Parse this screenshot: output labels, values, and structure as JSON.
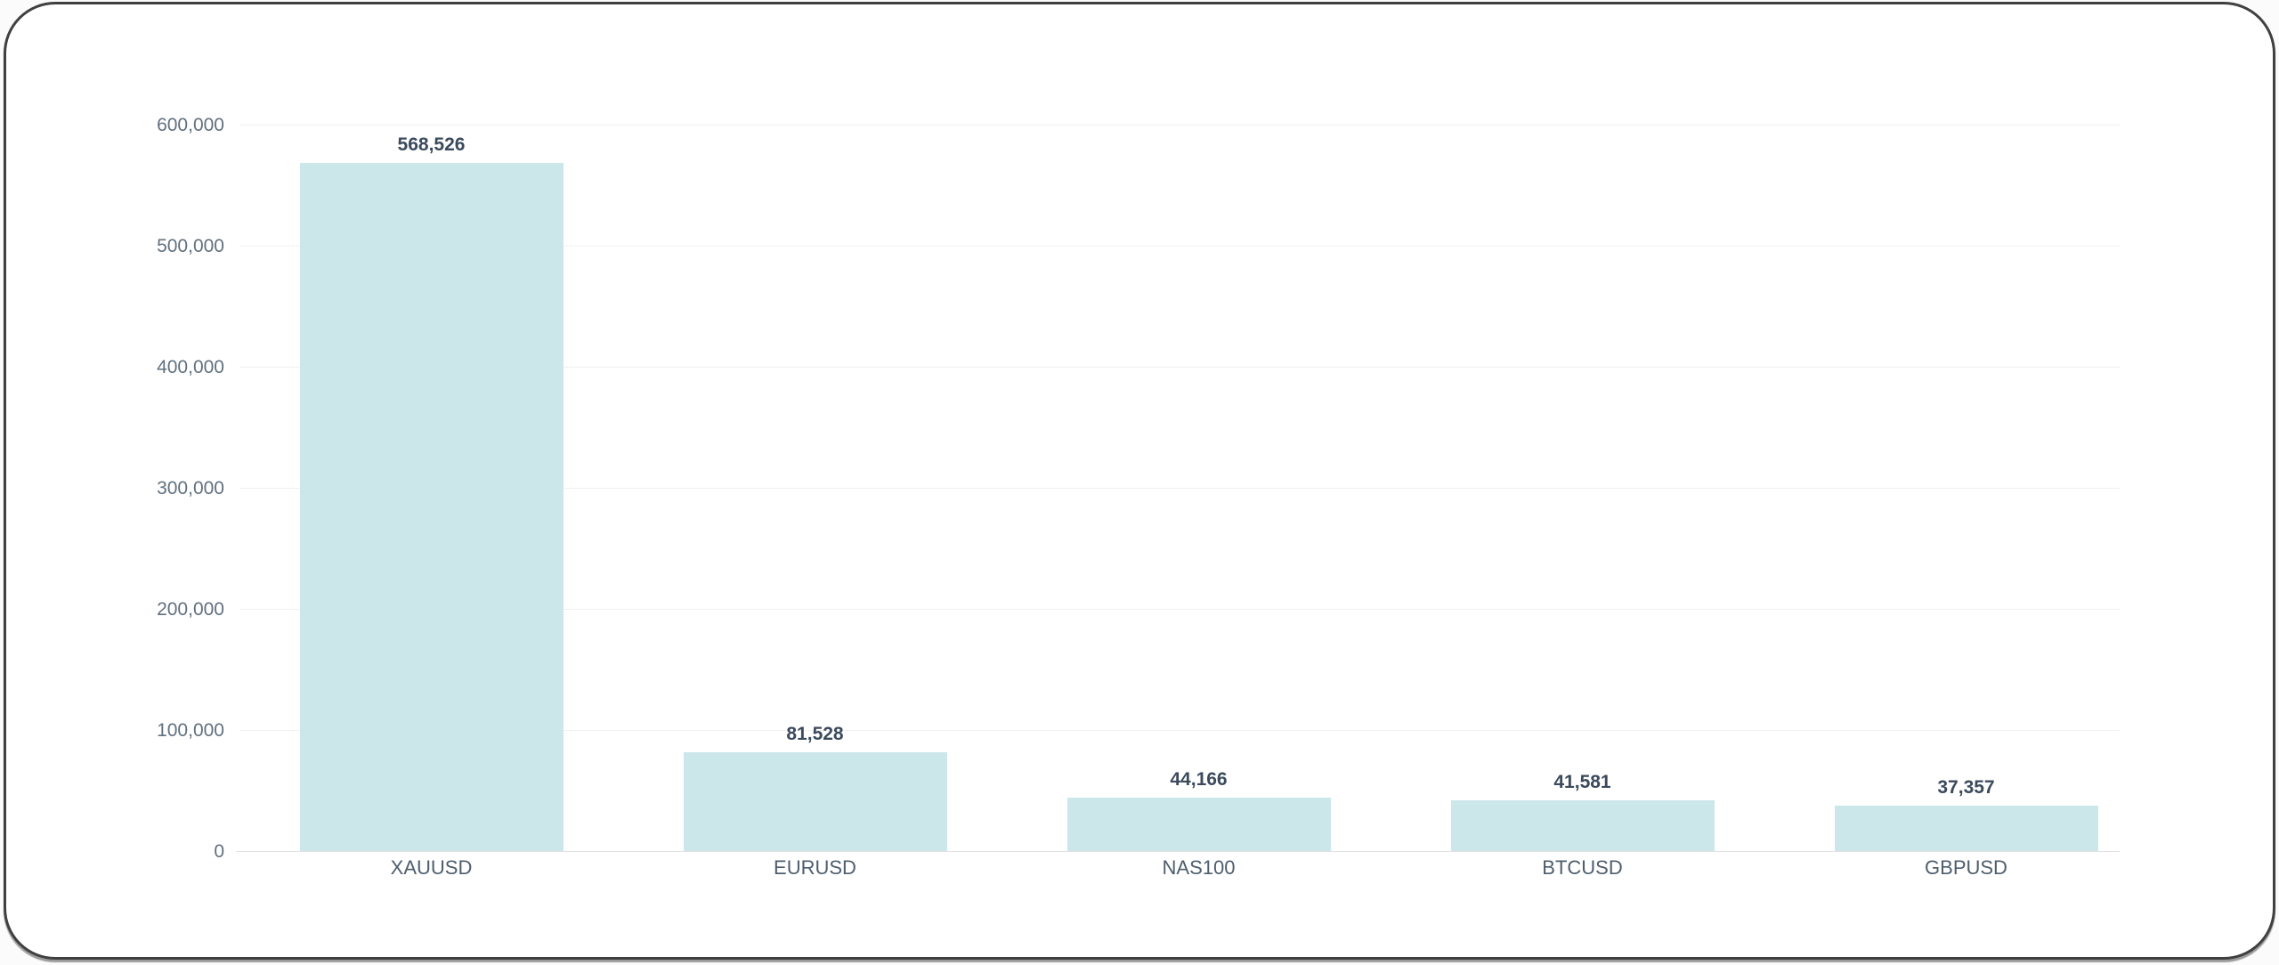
{
  "chart_data": {
    "type": "bar",
    "categories": [
      "XAUUSD",
      "EURUSD",
      "NAS100",
      "BTCUSD",
      "GBPUSD"
    ],
    "values": [
      568526,
      81528,
      44166,
      41581,
      37357
    ],
    "value_labels": [
      "568,526",
      "81,528",
      "44,166",
      "41,581",
      "37,357"
    ],
    "title": "",
    "xlabel": "",
    "ylabel": "",
    "ylim": [
      0,
      600000
    ],
    "y_ticks": [
      0,
      100000,
      200000,
      300000,
      400000,
      500000,
      600000
    ],
    "y_tick_labels": [
      "0",
      "100,000",
      "200,000",
      "300,000",
      "400,000",
      "500,000",
      "600,000"
    ],
    "grid": true,
    "legend": false,
    "bar_color": "#cbe7ea",
    "value_label_color": "#3b4a5c",
    "axis_label_color": "#61707f",
    "category_label_color": "#4e5e6e",
    "gridline_color": "#f1f1f1",
    "zero_line_color": "#e2e2e2",
    "card_border_color": "#404040",
    "card_background": "#ffffff"
  }
}
